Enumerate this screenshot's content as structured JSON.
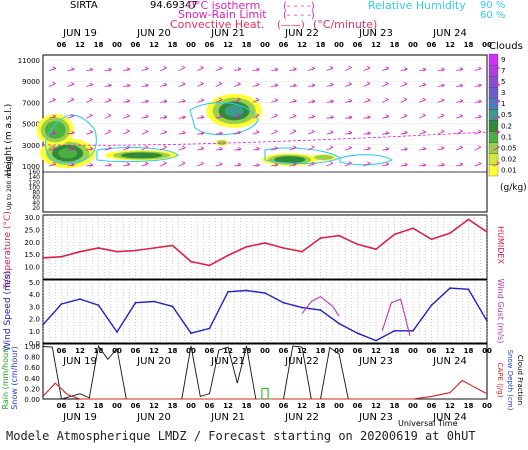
{
  "header": {
    "station": "SIRTA",
    "station_code": "94.69347",
    "legend_isotherm": "0°C isotherm",
    "legend_snow_rain": "Snow-Rain Limit",
    "legend_convective": "Convective Heat.",
    "legend_convective_unit": "(°C/minute)",
    "legend_rh": "Relative Humidity",
    "legend_rh_90": "90 %",
    "legend_rh_60": "60 %",
    "symbol_dashed": "(- - - -)",
    "symbol_solid": "(——)"
  },
  "footer": {
    "text": "Modele Atmospherique LMDZ / Forecast starting on 20200619 at 0hUT"
  },
  "chart_data": {
    "type": "line",
    "days": [
      "JUN 19",
      "JUN 20",
      "JUN 21",
      "JUN 22",
      "JUN 23",
      "JUN 24"
    ],
    "hour_ticks": [
      "06",
      "12",
      "18",
      "00"
    ],
    "xlabel": "Universal Time",
    "clouds": {
      "title": "Clouds",
      "unit": "(g/kg)",
      "scale": [
        {
          "label": "9",
          "color": "#cc33ff"
        },
        {
          "label": "7",
          "color": "#b03fe0"
        },
        {
          "label": "5",
          "color": "#8a4fd0"
        },
        {
          "label": "3",
          "color": "#6a60c8"
        },
        {
          "label": "1",
          "color": "#4a7fbe"
        },
        {
          "label": "0.5",
          "color": "#3e9a8a"
        },
        {
          "label": "0.2",
          "color": "#2f8a3a"
        },
        {
          "label": "0.1",
          "color": "#4db043"
        },
        {
          "label": "0.05",
          "color": "#9bd04a"
        },
        {
          "label": "0.02",
          "color": "#d8e83a"
        },
        {
          "label": "0.01",
          "color": "#ffff33"
        }
      ],
      "ylabel": "Height (m a.s.l.)",
      "ylabel_low": "Up to 200 m a.g.l.",
      "yticks_upper": [
        "11000",
        "9000",
        "7000",
        "5000",
        "3000",
        "1000"
      ],
      "yticks_lower": [
        "160",
        "140",
        "120",
        "100",
        "80",
        "60",
        "40",
        "20"
      ]
    },
    "temperature": {
      "ylabel": "Temperature (°C)",
      "ylabel_right": "HUMIDEX",
      "yticks": [
        "30.0",
        "25.0",
        "20.0",
        "15.0",
        "10.0"
      ],
      "ylim": [
        5,
        30
      ],
      "hours": [
        0,
        6,
        12,
        18,
        24,
        30,
        36,
        42,
        48,
        54,
        60,
        66,
        72,
        78,
        84,
        90,
        96,
        102,
        108,
        114,
        120,
        126,
        132,
        138,
        144
      ],
      "values": [
        13.5,
        14.0,
        16.0,
        17.5,
        16.0,
        16.5,
        17.5,
        18.5,
        12.0,
        10.5,
        14.5,
        18.0,
        19.5,
        17.5,
        16.0,
        21.5,
        22.5,
        19.0,
        17.0,
        23.0,
        25.5,
        21.0,
        23.5,
        29.0,
        24.0
      ]
    },
    "wind": {
      "ylabel": "Wind Speed (m/s)",
      "ylabel_right": "Wind Gust (m/s)",
      "yticks": [
        "5.0",
        "4.0",
        "3.0",
        "2.0",
        "1.0",
        "0.0"
      ],
      "ylim": [
        0,
        5
      ],
      "hours": [
        0,
        6,
        12,
        18,
        24,
        30,
        36,
        42,
        48,
        54,
        60,
        66,
        72,
        78,
        84,
        90,
        96,
        102,
        108,
        114,
        120,
        126,
        132,
        138,
        144
      ],
      "speed": [
        1.5,
        3.2,
        3.6,
        3.1,
        0.9,
        3.3,
        3.4,
        3.0,
        0.8,
        1.2,
        4.2,
        4.3,
        4.1,
        3.3,
        2.9,
        2.7,
        1.6,
        0.8,
        0.2,
        1.0,
        1.0,
        3.1,
        4.5,
        4.4,
        1.8
      ],
      "gust_segments": [
        {
          "hours": [
            84,
            87,
            90,
            94,
            96
          ],
          "values": [
            2.4,
            3.4,
            3.8,
            3.0,
            2.2
          ]
        },
        {
          "hours": [
            110,
            113,
            116,
            119
          ],
          "values": [
            1.0,
            3.3,
            3.6,
            0.6
          ]
        }
      ]
    },
    "precip": {
      "ylabel_rain": "Rain (mm/hour)",
      "ylabel_snow": "Snow (cm/hour)",
      "ylabel_cape": "CAPE (J/g)",
      "ylabel_snowdepth": "Snow Depth (cm)",
      "ylabel_cloudfrac": "Cloud Fraction",
      "yticks": [
        "1.00",
        "0.80",
        "0.60",
        "0.40",
        "0.20",
        "0.00"
      ],
      "ylim": [
        0,
        1
      ],
      "cloud_fraction_hours": [
        0,
        3,
        6,
        9,
        12,
        15,
        18,
        21,
        24,
        27,
        30,
        33,
        36,
        39,
        42,
        45,
        48,
        51,
        54,
        57,
        60,
        63,
        66,
        69,
        72,
        75,
        78,
        81,
        84,
        87,
        90,
        93,
        96,
        99,
        102,
        105,
        108,
        111,
        114,
        117,
        120,
        123,
        126,
        129,
        132,
        135,
        138,
        141,
        144
      ],
      "cloud_fraction": [
        0.99,
        0.98,
        0.0,
        0.05,
        0.1,
        0.02,
        1.0,
        0.75,
        0.95,
        0.0,
        0.0,
        0.0,
        0.0,
        0.0,
        0.0,
        0.0,
        1.0,
        0.05,
        0.1,
        0.92,
        0.98,
        0.3,
        1.0,
        0.0,
        0.0,
        0.0,
        0.0,
        1.0,
        0.98,
        0.0,
        0.0,
        0.97,
        0.85,
        0.0,
        0.0,
        0.0,
        0.0,
        0.0,
        0.0,
        0.0,
        0.0,
        0.0,
        0.0,
        0.0,
        0.0,
        0.0,
        0.0,
        0.0,
        0.0
      ],
      "cape_hours": [
        0,
        4,
        8,
        12,
        120,
        126,
        132,
        136,
        140,
        144
      ],
      "cape": [
        0.05,
        0.3,
        0.08,
        0.0,
        0.0,
        0.05,
        0.12,
        0.35,
        0.22,
        0.1
      ],
      "rain_hours": [
        70,
        71,
        71,
        73,
        73,
        74
      ],
      "rain": [
        0.0,
        0.0,
        0.2,
        0.2,
        0.0,
        0.0
      ]
    }
  }
}
